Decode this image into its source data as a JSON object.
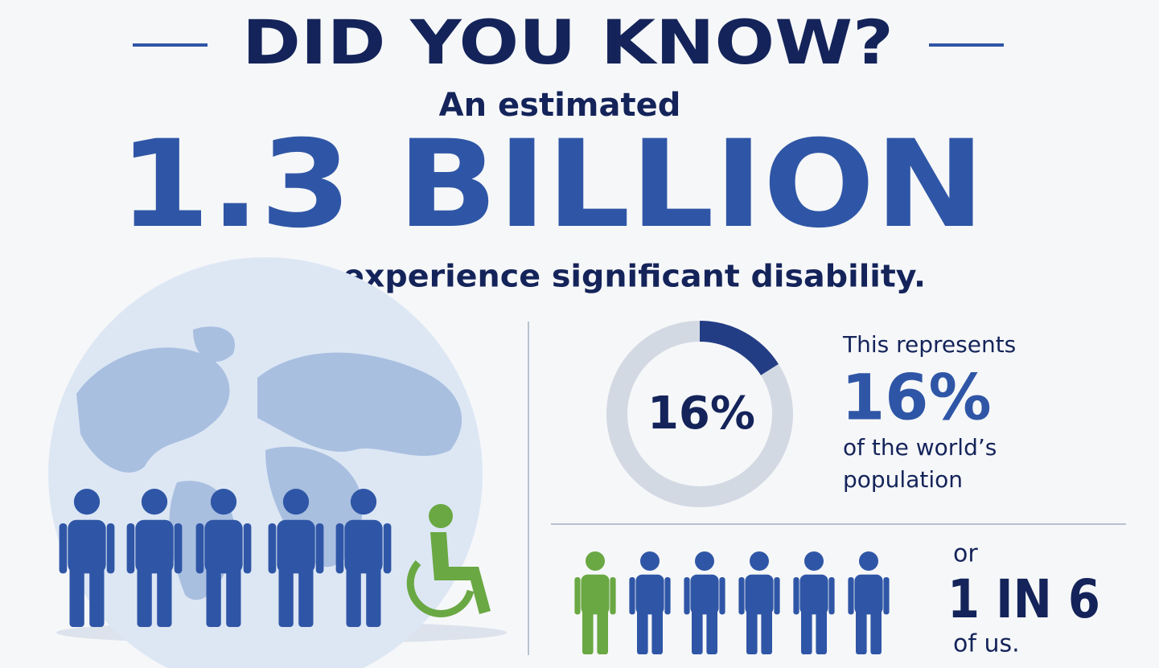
{
  "header": {
    "title": "DID YOU KNOW?",
    "intro": "An estimated",
    "headline": "1.3 BILLION",
    "caption": "people experience significant disability."
  },
  "donut": {
    "value": 16,
    "value_label": "16%"
  },
  "stat": {
    "intro": "This represents",
    "value": "16%",
    "caption_lines": [
      "of the world’s",
      "population"
    ]
  },
  "ratio": {
    "prefix": "or",
    "value": "1 IN 6",
    "suffix": "of us."
  }
}
